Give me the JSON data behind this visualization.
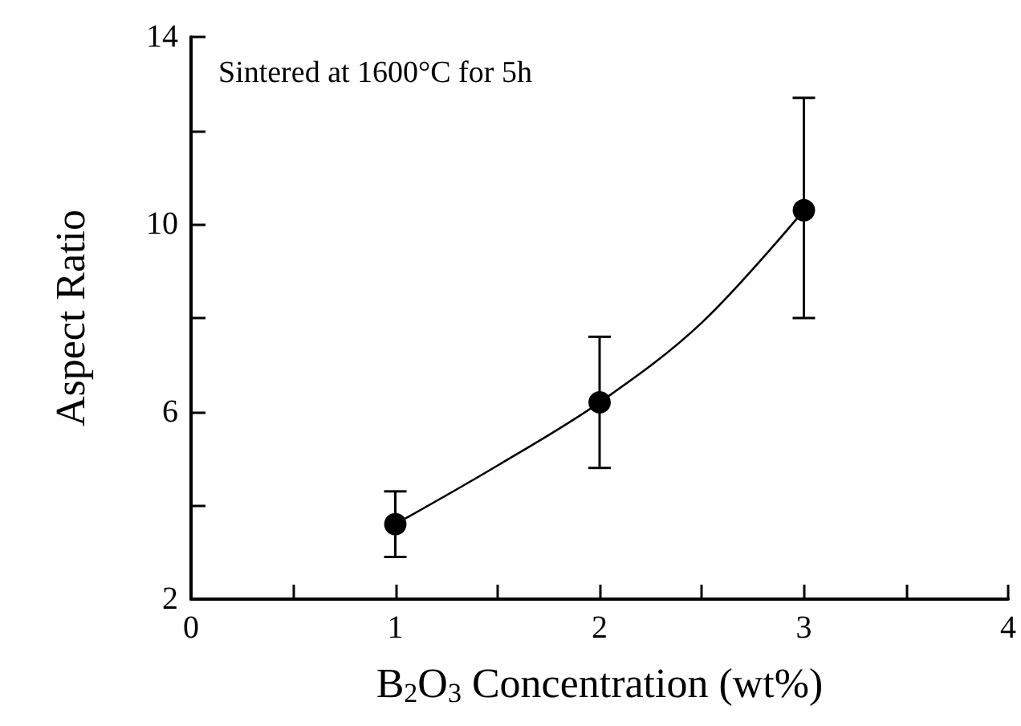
{
  "chart_data": {
    "type": "scatter",
    "xlabel": "B$_{2}$O$_{3}$ Concentration (wt%)",
    "ylabel": "Aspect Ratio",
    "annotations": [
      "Sintered at 1600°C for 5h"
    ],
    "xlim": [
      0,
      4
    ],
    "xticks": [
      0,
      {
        "value": 0.5,
        "label": null
      },
      1,
      {
        "value": 1.5,
        "label": null
      },
      2,
      {
        "value": 2.5,
        "label": null
      },
      3,
      {
        "value": 3.5,
        "label": null
      },
      4
    ],
    "ylim": [
      2,
      14
    ],
    "yticks": [
      2,
      {
        "value": 4,
        "label": null
      },
      6,
      {
        "value": 8,
        "label": null
      },
      10,
      {
        "value": 12,
        "label": null
      },
      14
    ],
    "grid": false,
    "series": [
      {
        "color": "#000000",
        "marker": "circle",
        "x": [
          1,
          2,
          3
        ],
        "values": [
          3.6,
          6.2,
          10.3
        ],
        "errors": [
          [
            2.9,
            4.3
          ],
          [
            4.8,
            7.6
          ],
          [
            8.0,
            12.7
          ]
        ]
      },
      {
        "type": "line",
        "color": "#000000",
        "marker": "none",
        "line_style": "solid",
        "x": [
          1,
          1.5,
          2,
          2.5,
          3
        ],
        "values": [
          3.6,
          4.85,
          6.2,
          7.9,
          10.3
        ]
      }
    ]
  }
}
